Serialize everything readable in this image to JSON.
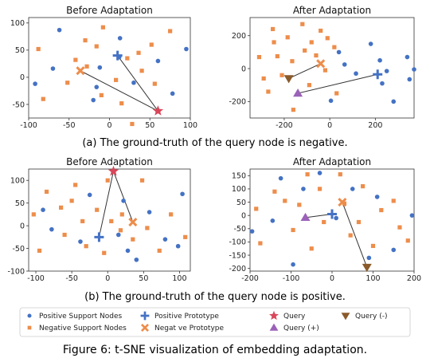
{
  "figure": {
    "caption": "Figure 6: t-SNE visualization of embedding adaptation.",
    "caption_a": "(a) The ground-truth of the query node is negative.",
    "caption_b": "(b) The ground-truth of the query node is positive."
  },
  "colors": {
    "positive": "#4472c4",
    "negative": "#ed8d4b",
    "query": "#d9465a",
    "query_pos": "#9b62b8",
    "query_neg": "#8a5a2a",
    "line": "#333333"
  },
  "legend": {
    "items": [
      {
        "label": "Positive Support Nodes",
        "marker": "circle",
        "color_key": "positive"
      },
      {
        "label": "Negative Support Nodes",
        "marker": "square",
        "color_key": "negative"
      },
      {
        "label": "Positive Prototype",
        "marker": "plus",
        "color_key": "positive"
      },
      {
        "label": "Negat ve Prototype",
        "marker": "x",
        "color_key": "negative"
      },
      {
        "label": "Query",
        "marker": "star",
        "color_key": "query"
      },
      {
        "label": "Query (+)",
        "marker": "triangle-up",
        "color_key": "query_pos"
      },
      {
        "label": "Query (-)",
        "marker": "triangle-down",
        "color_key": "query_neg"
      }
    ]
  },
  "chart_data": [
    {
      "type": "scatter",
      "title": "Before Adaptation",
      "xlim": [
        -100,
        100
      ],
      "ylim": [
        -75,
        110
      ],
      "xticks": [
        -100,
        -50,
        0,
        50,
        100
      ],
      "yticks": [
        -50,
        0,
        50,
        100
      ],
      "positive_support": [
        [
          -92,
          -12
        ],
        [
          -70,
          16
        ],
        [
          -62,
          87
        ],
        [
          -20,
          -42
        ],
        [
          -16,
          -18
        ],
        [
          -12,
          18
        ],
        [
          13,
          72
        ],
        [
          30,
          -10
        ],
        [
          60,
          30
        ],
        [
          78,
          -30
        ],
        [
          95,
          52
        ],
        [
          12,
          37
        ]
      ],
      "negative_support": [
        [
          -88,
          52
        ],
        [
          -82,
          -40
        ],
        [
          -52,
          -10
        ],
        [
          -42,
          32
        ],
        [
          -30,
          68
        ],
        [
          -28,
          20
        ],
        [
          -16,
          57
        ],
        [
          -10,
          -33
        ],
        [
          -8,
          92
        ],
        [
          8,
          -5
        ],
        [
          15,
          -48
        ],
        [
          22,
          35
        ],
        [
          28,
          -86
        ],
        [
          36,
          45
        ],
        [
          40,
          12
        ],
        [
          52,
          60
        ],
        [
          56,
          -12
        ],
        [
          75,
          85
        ]
      ],
      "positive_prototype": [
        10,
        40
      ],
      "negative_prototype": [
        -36,
        12
      ],
      "query": [
        60,
        -62
      ],
      "query_adapted": null,
      "lines": [
        [
          [
            10,
            40
          ],
          [
            60,
            -62
          ]
        ],
        [
          [
            -36,
            12
          ],
          [
            60,
            -62
          ]
        ]
      ]
    },
    {
      "type": "scatter",
      "title": "After Adaptation",
      "xlim": [
        -350,
        370
      ],
      "ylim": [
        -300,
        310
      ],
      "xticks": [
        -200,
        0,
        200
      ],
      "yticks": [
        -200,
        0,
        200
      ],
      "positive_support": [
        [
          40,
          100
        ],
        [
          65,
          25
        ],
        [
          115,
          -30
        ],
        [
          180,
          150
        ],
        [
          220,
          50
        ],
        [
          230,
          -90
        ],
        [
          250,
          -15
        ],
        [
          280,
          -200
        ],
        [
          340,
          70
        ],
        [
          350,
          -65
        ],
        [
          370,
          -5
        ],
        [
          5,
          -195
        ]
      ],
      "negative_support": [
        [
          -310,
          70
        ],
        [
          -290,
          -60
        ],
        [
          -270,
          -140
        ],
        [
          -245,
          160
        ],
        [
          -230,
          75
        ],
        [
          -210,
          -40
        ],
        [
          -185,
          190
        ],
        [
          -165,
          45
        ],
        [
          -120,
          270
        ],
        [
          -110,
          110
        ],
        [
          -90,
          -100
        ],
        [
          -80,
          160
        ],
        [
          -60,
          80
        ],
        [
          -40,
          230
        ],
        [
          -20,
          -10
        ],
        [
          -10,
          185
        ],
        [
          20,
          130
        ],
        [
          30,
          -150
        ],
        [
          -160,
          -250
        ],
        [
          -250,
          240
        ]
      ],
      "positive_prototype": [
        210,
        -35
      ],
      "negative_prototype": [
        -40,
        30
      ],
      "query": null,
      "query_neg": [
        -180,
        -60
      ],
      "query_pos": [
        -140,
        -150
      ],
      "lines": [
        [
          [
            -40,
            30
          ],
          [
            -180,
            -60
          ]
        ],
        [
          [
            210,
            -35
          ],
          [
            -140,
            -150
          ]
        ]
      ]
    },
    {
      "type": "scatter",
      "title": "Before Adaptation",
      "xlim": [
        -110,
        115
      ],
      "ylim": [
        -100,
        125
      ],
      "xticks": [
        -100,
        -50,
        0,
        50,
        100
      ],
      "yticks": [
        -100,
        -50,
        0,
        50,
        100
      ],
      "positive_support": [
        [
          -90,
          35
        ],
        [
          -78,
          -8
        ],
        [
          -38,
          -35
        ],
        [
          -25,
          68
        ],
        [
          15,
          -20
        ],
        [
          22,
          55
        ],
        [
          40,
          -75
        ],
        [
          58,
          30
        ],
        [
          80,
          -30
        ],
        [
          98,
          -45
        ],
        [
          104,
          70
        ],
        [
          28,
          -55
        ]
      ],
      "negative_support": [
        [
          -103,
          25
        ],
        [
          -95,
          -55
        ],
        [
          -85,
          75
        ],
        [
          -65,
          40
        ],
        [
          -60,
          -20
        ],
        [
          -50,
          55
        ],
        [
          -45,
          90
        ],
        [
          -35,
          10
        ],
        [
          -30,
          -45
        ],
        [
          -15,
          35
        ],
        [
          -5,
          -60
        ],
        [
          0,
          100
        ],
        [
          5,
          10
        ],
        [
          20,
          25
        ],
        [
          35,
          -30
        ],
        [
          48,
          100
        ],
        [
          55,
          -5
        ],
        [
          72,
          -55
        ],
        [
          88,
          25
        ],
        [
          108,
          -25
        ],
        [
          18,
          -10
        ]
      ],
      "positive_prototype": [
        -12,
        -25
      ],
      "negative_prototype": [
        35,
        8
      ],
      "query": [
        8,
        120
      ],
      "query_adapted": null,
      "lines": [
        [
          [
            -12,
            -25
          ],
          [
            8,
            120
          ]
        ],
        [
          [
            35,
            8
          ],
          [
            8,
            120
          ]
        ]
      ]
    },
    {
      "type": "scatter",
      "title": "After Adaptation",
      "xlim": [
        -200,
        200
      ],
      "ylim": [
        -210,
        175
      ],
      "xticks": [
        -200,
        -100,
        0,
        100,
        200
      ],
      "yticks": [
        -200,
        -150,
        -100,
        -50,
        0,
        50,
        100,
        150
      ],
      "positive_support": [
        [
          -195,
          -60
        ],
        [
          -145,
          -20
        ],
        [
          -125,
          140
        ],
        [
          -95,
          -185
        ],
        [
          -70,
          100
        ],
        [
          -30,
          160
        ],
        [
          10,
          -10
        ],
        [
          50,
          100
        ],
        [
          90,
          -160
        ],
        [
          110,
          70
        ],
        [
          150,
          -130
        ],
        [
          195,
          0
        ]
      ],
      "negative_support": [
        [
          -185,
          25
        ],
        [
          -175,
          -105
        ],
        [
          -140,
          90
        ],
        [
          -115,
          55
        ],
        [
          -95,
          -55
        ],
        [
          -80,
          40
        ],
        [
          -60,
          155
        ],
        [
          -50,
          -125
        ],
        [
          -30,
          100
        ],
        [
          -20,
          -25
        ],
        [
          20,
          155
        ],
        [
          30,
          45
        ],
        [
          45,
          -75
        ],
        [
          65,
          -25
        ],
        [
          75,
          110
        ],
        [
          100,
          -115
        ],
        [
          120,
          20
        ],
        [
          150,
          55
        ],
        [
          165,
          -45
        ],
        [
          185,
          -95
        ]
      ],
      "positive_prototype": [
        0,
        5
      ],
      "negative_prototype": [
        25,
        50
      ],
      "query": null,
      "query_pos": [
        -65,
        -8
      ],
      "query_neg": [
        85,
        -195
      ],
      "lines": [
        [
          [
            25,
            50
          ],
          [
            85,
            -195
          ]
        ],
        [
          [
            0,
            5
          ],
          [
            -65,
            -8
          ]
        ]
      ]
    }
  ]
}
